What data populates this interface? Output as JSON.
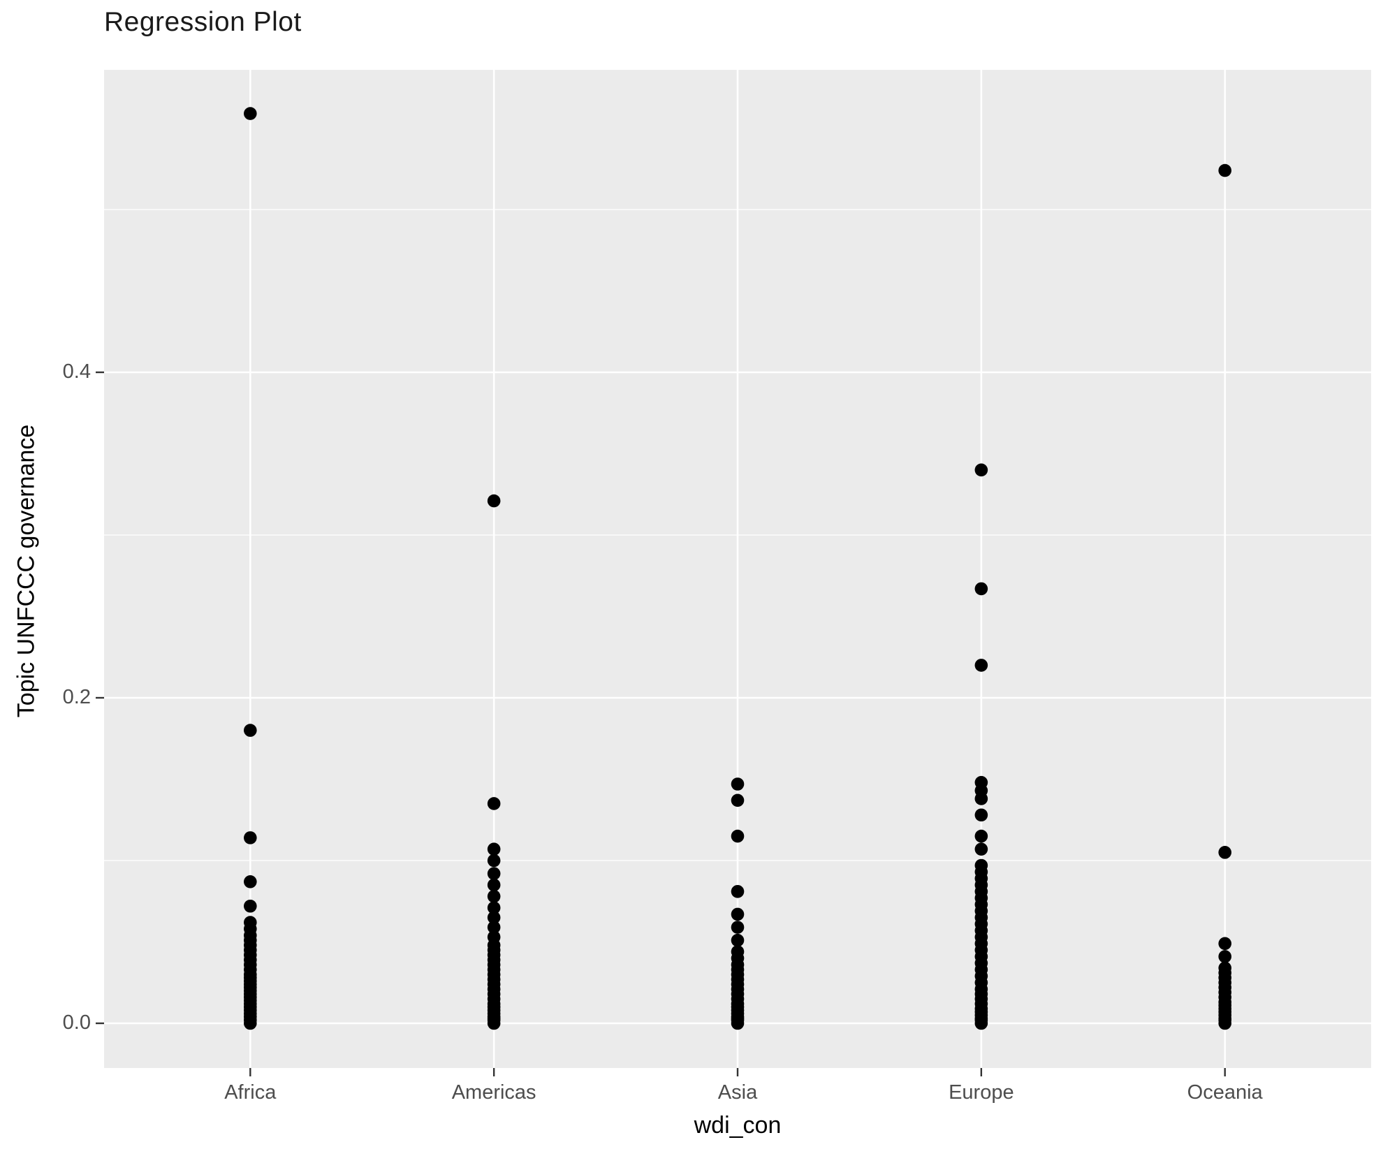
{
  "title": "Regression Plot",
  "chart_data": {
    "type": "scatter",
    "title": "Regression Plot",
    "xlabel": "wdi_con",
    "ylabel": "Topic UNFCCC governance",
    "categories": [
      "Africa",
      "Americas",
      "Asia",
      "Europe",
      "Oceania"
    ],
    "y_tick_labels": [
      "0.0",
      "0.2",
      "0.4"
    ],
    "y_tick_values": [
      0.0,
      0.2,
      0.4
    ],
    "y_minor_values": [
      0.1,
      0.3,
      0.5
    ],
    "ylim": [
      -0.027,
      0.586
    ],
    "grid": "major-and-minor-white-on-grey",
    "legend_position": "none",
    "series": [
      {
        "name": "Africa",
        "values": [
          0.559,
          0.18,
          0.114,
          0.087,
          0.072,
          0.062,
          0.058,
          0.054,
          0.051,
          0.048,
          0.045,
          0.042,
          0.039,
          0.036,
          0.033,
          0.03,
          0.028,
          0.026,
          0.024,
          0.022,
          0.02,
          0.018,
          0.016,
          0.014,
          0.012,
          0.01,
          0.008,
          0.006,
          0.004,
          0.002,
          0
        ]
      },
      {
        "name": "Americas",
        "values": [
          0.321,
          0.135,
          0.107,
          0.1,
          0.092,
          0.085,
          0.078,
          0.071,
          0.065,
          0.059,
          0.053,
          0.048,
          0.045,
          0.042,
          0.039,
          0.036,
          0.033,
          0.03,
          0.027,
          0.024,
          0.021,
          0.018,
          0.015,
          0.012,
          0.01,
          0.008,
          0.006,
          0.004,
          0.003,
          0.002,
          0
        ]
      },
      {
        "name": "Asia",
        "values": [
          0.147,
          0.137,
          0.115,
          0.081,
          0.067,
          0.059,
          0.051,
          0.044,
          0.04,
          0.036,
          0.033,
          0.03,
          0.027,
          0.024,
          0.021,
          0.018,
          0.015,
          0.012,
          0.01,
          0.008,
          0.006,
          0.004,
          0.003,
          0.002,
          0
        ]
      },
      {
        "name": "Europe",
        "values": [
          0.34,
          0.267,
          0.22,
          0.148,
          0.143,
          0.138,
          0.128,
          0.115,
          0.107,
          0.097,
          0.093,
          0.089,
          0.085,
          0.081,
          0.077,
          0.073,
          0.069,
          0.065,
          0.061,
          0.057,
          0.053,
          0.049,
          0.045,
          0.041,
          0.037,
          0.033,
          0.029,
          0.025,
          0.021,
          0.018,
          0.015,
          0.012,
          0.009,
          0.007,
          0.005,
          0.003,
          0.002,
          0
        ]
      },
      {
        "name": "Oceania",
        "values": [
          0.524,
          0.105,
          0.049,
          0.041,
          0.034,
          0.031,
          0.028,
          0.025,
          0.022,
          0.019,
          0.016,
          0.013,
          0.011,
          0.009,
          0.007,
          0.005,
          0.003,
          0.002,
          0
        ]
      }
    ],
    "style": {
      "panel_bg": "#ebebeb",
      "grid_color": "#ffffff",
      "point_color": "#000000",
      "tick_text_color": "#4d4d4d",
      "tick_mark_color": "#333333",
      "axis_title_color": "#000000",
      "title_color": "#1a1a1a",
      "plot_bg": "#ffffff"
    }
  }
}
